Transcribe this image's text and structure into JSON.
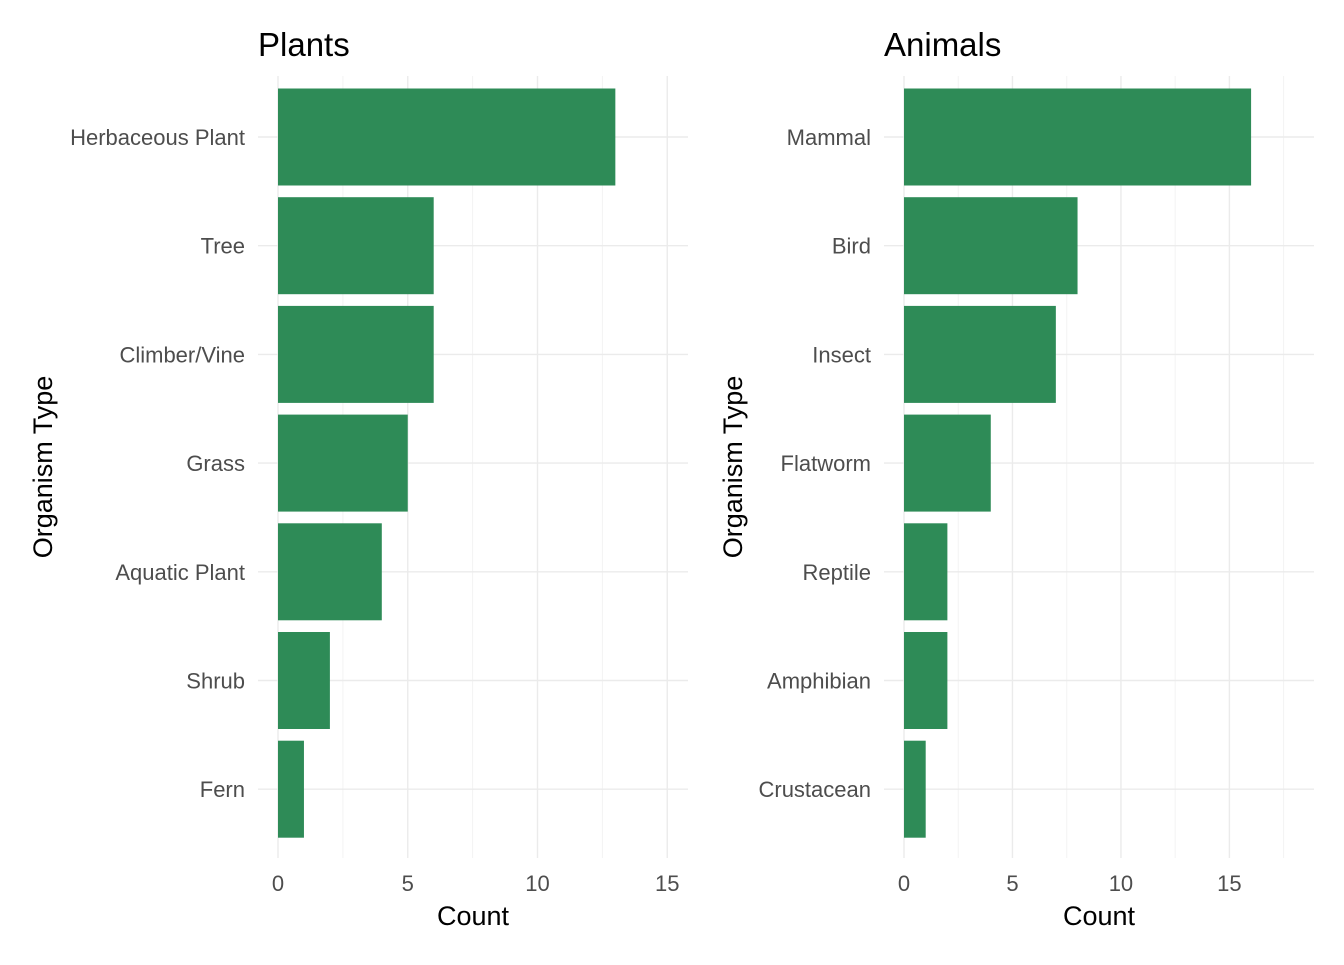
{
  "chart_data": [
    {
      "type": "bar",
      "orientation": "horizontal",
      "title": "Plants",
      "xlabel": "Count",
      "ylabel": "Organism Type",
      "categories": [
        "Herbaceous Plant",
        "Tree",
        "Climber/Vine",
        "Grass",
        "Aquatic Plant",
        "Shrub",
        "Fern"
      ],
      "values": [
        13,
        6,
        6,
        5,
        4,
        2,
        1
      ],
      "xlim": [
        0,
        15.8
      ],
      "xticks": [
        0,
        5,
        10,
        15
      ],
      "grid": true,
      "legend": "none",
      "bar_color": "#2E8B57"
    },
    {
      "type": "bar",
      "orientation": "horizontal",
      "title": "Animals",
      "xlabel": "Count",
      "ylabel": "Organism Type",
      "categories": [
        "Mammal",
        "Bird",
        "Insect",
        "Flatworm",
        "Reptile",
        "Amphibian",
        "Crustacean"
      ],
      "values": [
        16,
        8,
        7,
        4,
        2,
        2,
        1
      ],
      "xlim": [
        0,
        18.9
      ],
      "xticks": [
        0,
        5,
        10,
        15
      ],
      "grid": true,
      "legend": "none",
      "bar_color": "#2E8B57"
    }
  ]
}
